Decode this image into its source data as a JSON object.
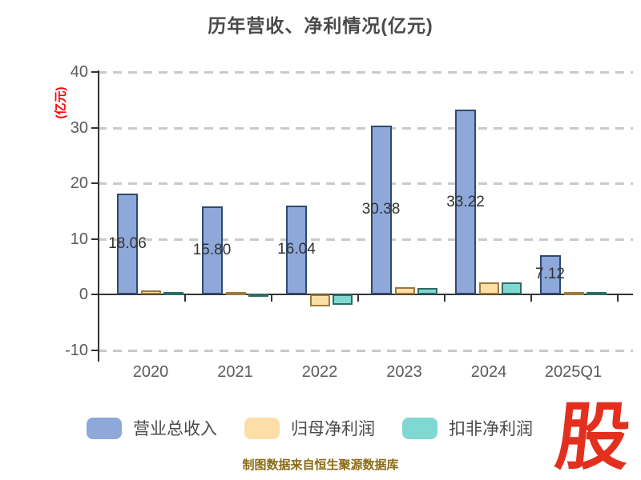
{
  "title": "历年营收、净利情况(亿元)",
  "y_axis_unit": "(亿元)",
  "footer_text": "制图数据来自恒生聚源数据库",
  "logo_text": "股",
  "colors": {
    "axis": "#333333",
    "grid": "#c9c9c9",
    "title_text": "#4a4a4a",
    "tick_text": "#5a5a5a",
    "unit_red": "#ff0000",
    "footer_brown": "#8a6a14",
    "logo_red": "#e3301e"
  },
  "chart_data": {
    "type": "bar",
    "title": "历年营收、净利情况(亿元)",
    "ylabel": "(亿元)",
    "ylim": [
      -10,
      40
    ],
    "yticks": [
      40,
      30,
      20,
      10,
      0,
      -10
    ],
    "grid": "horizontal dashed",
    "legend_position": "bottom",
    "categories": [
      "2020",
      "2021",
      "2022",
      "2023",
      "2024",
      "2025Q1"
    ],
    "series": [
      {
        "key": "revenue",
        "name": "营业总收入",
        "color": "#8da8d9",
        "border": "#2f4a6e",
        "values": [
          18.06,
          15.8,
          16.04,
          30.38,
          33.22,
          7.12
        ],
        "labels": [
          "18.06",
          "15.80",
          "16.04",
          "30.38",
          "33.22",
          "7.12"
        ]
      },
      {
        "key": "net-profit",
        "name": "归母净利润",
        "color": "#fcdfa6",
        "border": "#9a7a3e",
        "values": [
          0.7,
          0.5,
          -2.2,
          1.3,
          2.2,
          0.5
        ],
        "labels": null
      },
      {
        "key": "net-profit-excl",
        "name": "扣非净利润",
        "color": "#7fd9d1",
        "border": "#2f6b64",
        "values": [
          0.45,
          0.1,
          -1.9,
          1.2,
          2.1,
          0.45
        ],
        "labels": null
      }
    ]
  }
}
